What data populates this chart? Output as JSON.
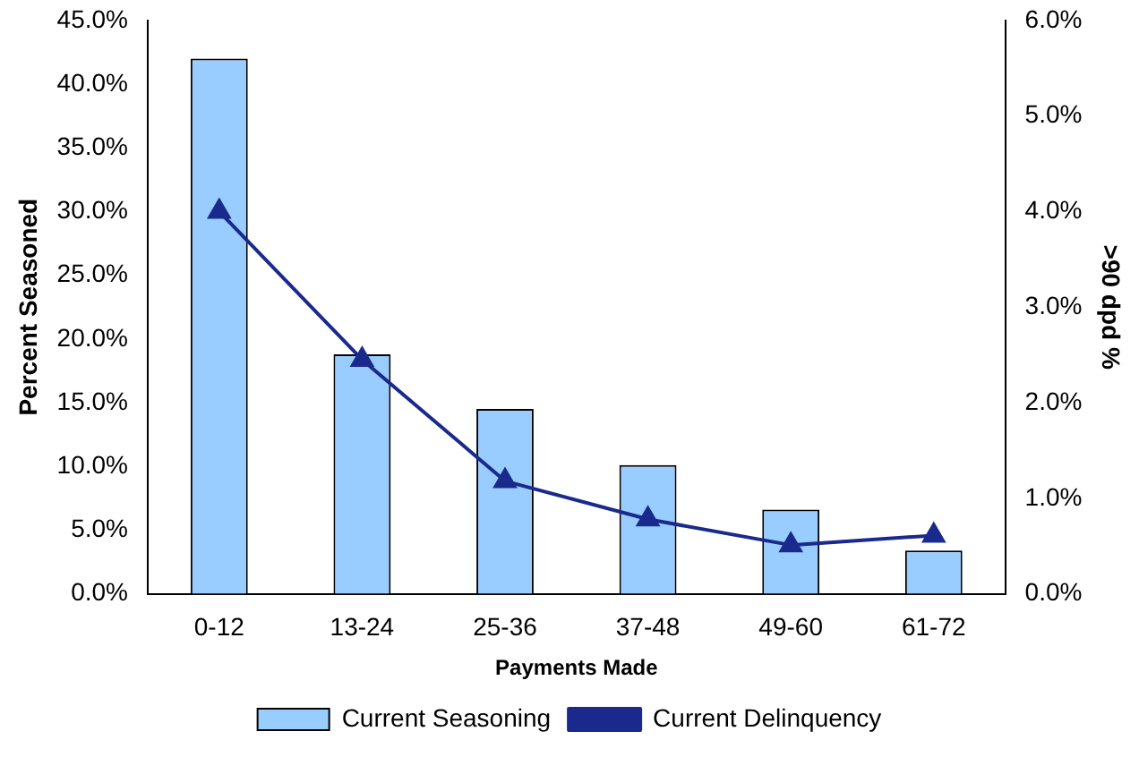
{
  "chart_data": {
    "type": "bar",
    "xlabel": "Payments Made",
    "ylabel": "Percent Seasoned",
    "y2label": ">90 dpd %",
    "categories": [
      "0-12",
      "13-24",
      "25-36",
      "37-48",
      "49-60",
      "61-72"
    ],
    "series": [
      {
        "name": "Current Seasoning",
        "color": "#99ccff",
        "values": [
          42.0,
          18.8,
          14.5,
          10.1,
          6.6,
          3.4
        ]
      },
      {
        "name": "Current Delinquency",
        "type": "line",
        "axis": "y2",
        "color": "#1a2a8c",
        "marker": "triangle",
        "values": [
          4.0,
          2.45,
          1.18,
          0.78,
          0.51,
          0.61
        ]
      }
    ],
    "ylim": [
      0,
      45
    ],
    "yticks": [
      {
        "value": 0,
        "label": "0.0%"
      },
      {
        "value": 5,
        "label": "5.0%"
      },
      {
        "value": 10,
        "label": "10.0%"
      },
      {
        "value": 15,
        "label": "15.0%"
      },
      {
        "value": 20,
        "label": "20.0%"
      },
      {
        "value": 25,
        "label": "25.0%"
      },
      {
        "value": 30,
        "label": "30.0%"
      },
      {
        "value": 35,
        "label": "35.0%"
      },
      {
        "value": 40,
        "label": "40.0%"
      },
      {
        "value": 45,
        "label": "45.0%"
      }
    ],
    "y2lim": [
      0,
      6
    ],
    "y2ticks": [
      {
        "value": 0,
        "label": "0.0%"
      },
      {
        "value": 1,
        "label": "1.0%"
      },
      {
        "value": 2,
        "label": "2.0%"
      },
      {
        "value": 3,
        "label": "3.0%"
      },
      {
        "value": 4,
        "label": "4.0%"
      },
      {
        "value": 5,
        "label": "5.0%"
      },
      {
        "value": 6,
        "label": "6.0%"
      }
    ],
    "grid": false,
    "legend": "bottom"
  }
}
